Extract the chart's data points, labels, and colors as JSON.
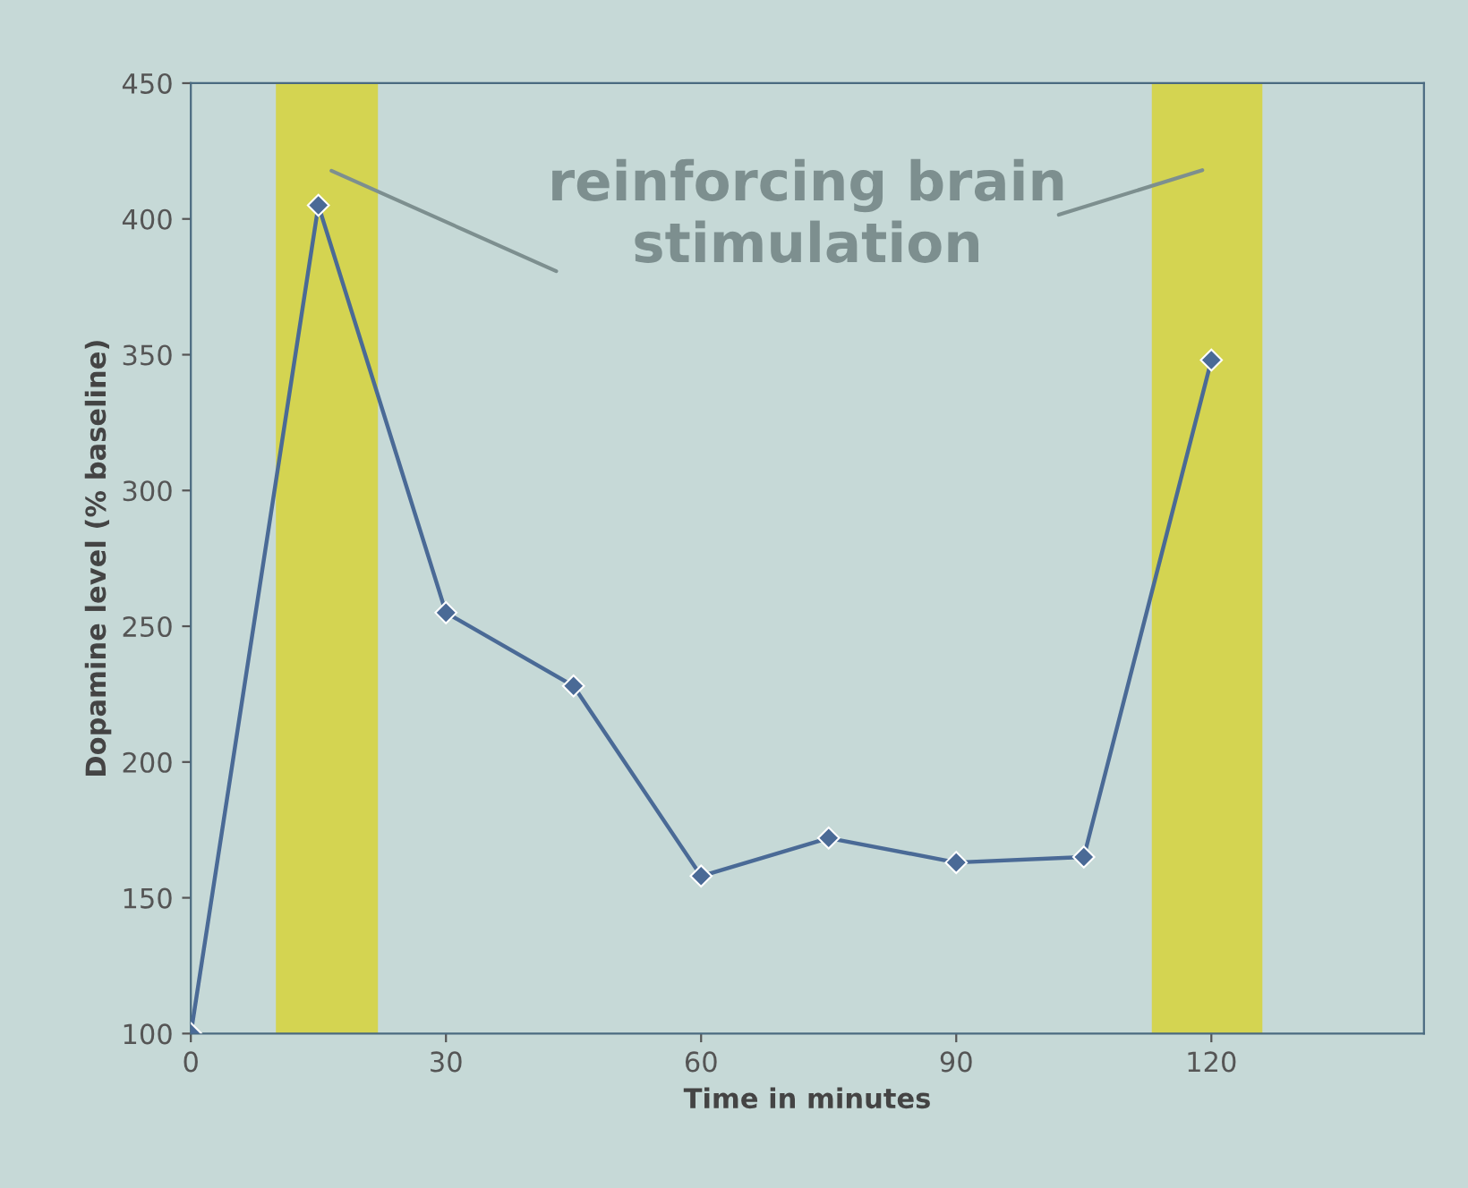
{
  "chart_data": {
    "type": "line",
    "xlabel": "Time in minutes",
    "ylabel": "Dopamine level (% baseline)",
    "x": [
      0,
      15,
      30,
      45,
      60,
      75,
      90,
      105,
      120
    ],
    "series": [
      {
        "color": "#4a6a96",
        "values": [
          100,
          405,
          255,
          228,
          158,
          172,
          163,
          165,
          348
        ]
      }
    ],
    "xlim": [
      0,
      145
    ],
    "xticks": [
      0,
      30,
      60,
      90,
      120
    ],
    "ylim": [
      100,
      450
    ],
    "yticks": [
      100,
      150,
      200,
      250,
      300,
      350,
      400,
      450
    ],
    "bands": [
      {
        "axis": "x",
        "from": 10,
        "to": 22,
        "color": "#d6d23a"
      },
      {
        "axis": "x",
        "from": 113,
        "to": 126,
        "color": "#d6d23a"
      }
    ],
    "annotations": [
      "reinforcing brain\nstimulation"
    ],
    "marker": "diamond",
    "grid": false,
    "legend": false
  }
}
